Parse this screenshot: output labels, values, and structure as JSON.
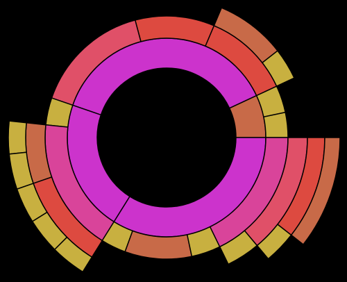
{
  "chart_data": {
    "type": "sunburst",
    "nodes": [
      {
        "value": 25,
        "color": "#c86a48",
        "children": [
          {
            "value": 12,
            "color": "#c8b040"
          },
          {
            "value": 13,
            "color": "#c8b040"
          }
        ]
      },
      {
        "value": 136,
        "color": "#cc33cc",
        "children": [
          {
            "value": 42,
            "color": "#dd4a40",
            "children": [
              {
                "value": 13,
                "color": "#c8b040"
              },
              {
                "value": 29,
                "color": "#c86a48"
              }
            ]
          },
          {
            "value": 38,
            "color": "#dd4a40"
          },
          {
            "value": 56,
            "color": "#e05068"
          }
        ]
      },
      {
        "value": 77,
        "color": "#cc33cc",
        "children": [
          {
            "value": 13,
            "color": "#c8b040"
          },
          {
            "value": 64,
            "color": "#d9449a",
            "children": [
              {
                "value": 25,
                "color": "#c86a48",
                "children": [
                  {
                    "value": 12,
                    "color": "#c8b040"
                  },
                  {
                    "value": 13,
                    "color": "#c8b040"
                  }
                ]
              },
              {
                "value": 39,
                "color": "#dd4a40",
                "children": [
                  {
                    "value": 13,
                    "color": "#c8b040"
                  },
                  {
                    "value": 13,
                    "color": "#c8b040"
                  },
                  {
                    "value": 13,
                    "color": "#c8b040"
                  }
                ]
              }
            ]
          }
        ]
      },
      {
        "value": 122,
        "color": "#cc33cc",
        "children": [
          {
            "value": 12,
            "color": "#c8b040"
          },
          {
            "value": 32,
            "color": "#c86a48"
          },
          {
            "value": 14,
            "color": "#c8b040"
          },
          {
            "value": 64,
            "color": "#d9449a",
            "children": [
              {
                "value": 14,
                "color": "#c8b040"
              },
              {
                "value": 50,
                "color": "#e05068",
                "children": [
                  {
                    "value": 12,
                    "color": "#c8b040"
                  },
                  {
                    "value": 38,
                    "color": "#dd4a40",
                    "children": [
                      {
                        "value": 38,
                        "color": "#c86a48"
                      }
                    ]
                  }
                ]
              }
            ]
          }
        ]
      }
    ]
  }
}
